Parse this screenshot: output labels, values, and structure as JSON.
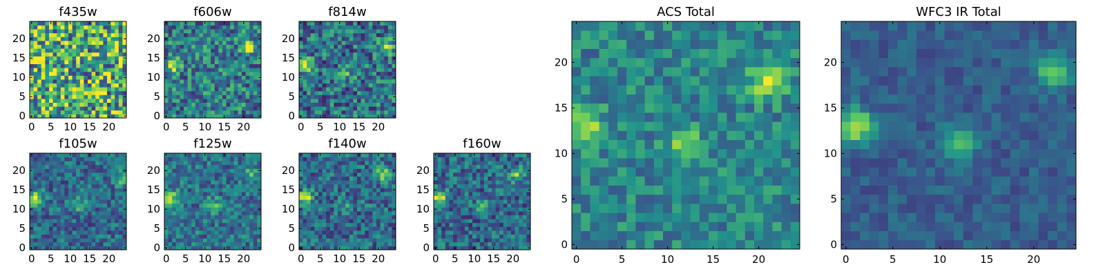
{
  "figure": {
    "colormap": "viridis",
    "colormap_stops": [
      "#440154",
      "#3b528b",
      "#21918c",
      "#5ec962",
      "#fde725"
    ]
  },
  "chart_data": [
    {
      "type": "heatmap",
      "title": "f435w",
      "grid": [
        25,
        25
      ],
      "xlim": [
        0,
        24
      ],
      "ylim": [
        0,
        24
      ],
      "xticks": [
        0,
        5,
        10,
        15,
        20
      ],
      "yticks": [
        0,
        5,
        10,
        15,
        20
      ],
      "hotspots": [
        {
          "x": 21,
          "y": 18,
          "value": 0.9
        }
      ],
      "noise_level": 0.55,
      "background_level": 0.62
    },
    {
      "type": "heatmap",
      "title": "f606w",
      "grid": [
        25,
        25
      ],
      "xlim": [
        0,
        24
      ],
      "ylim": [
        0,
        24
      ],
      "xticks": [
        0,
        5,
        10,
        15,
        20
      ],
      "yticks": [
        0,
        5,
        10,
        15,
        20
      ],
      "hotspots": [
        {
          "x": 2,
          "y": 13,
          "value": 0.9
        },
        {
          "x": 21,
          "y": 18,
          "value": 0.95
        }
      ],
      "noise_level": 0.35,
      "background_level": 0.42
    },
    {
      "type": "heatmap",
      "title": "f814w",
      "grid": [
        25,
        25
      ],
      "xlim": [
        0,
        24
      ],
      "ylim": [
        0,
        24
      ],
      "xticks": [
        0,
        5,
        10,
        15,
        20
      ],
      "yticks": [
        0,
        5,
        10,
        15,
        20
      ],
      "hotspots": [
        {
          "x": 1,
          "y": 13,
          "value": 0.95
        },
        {
          "x": 22,
          "y": 18,
          "value": 0.85
        },
        {
          "x": 12,
          "y": 11,
          "value": 0.6
        }
      ],
      "noise_level": 0.35,
      "background_level": 0.38
    },
    {
      "type": "heatmap",
      "title": "f105w",
      "grid": [
        25,
        25
      ],
      "xlim": [
        0,
        24
      ],
      "ylim": [
        0,
        24
      ],
      "xticks": [
        0,
        5,
        10,
        15,
        20
      ],
      "yticks": [
        0,
        5,
        10,
        15,
        20
      ],
      "hotspots": [
        {
          "x": 1,
          "y": 13,
          "value": 0.95
        },
        {
          "x": 12,
          "y": 11,
          "value": 0.7
        },
        {
          "x": 23,
          "y": 18,
          "value": 0.7
        }
      ],
      "noise_level": 0.25,
      "background_level": 0.35
    },
    {
      "type": "heatmap",
      "title": "f125w",
      "grid": [
        25,
        25
      ],
      "xlim": [
        0,
        24
      ],
      "ylim": [
        0,
        24
      ],
      "xticks": [
        0,
        5,
        10,
        15,
        20
      ],
      "yticks": [
        0,
        5,
        10,
        15,
        20
      ],
      "hotspots": [
        {
          "x": 1,
          "y": 13,
          "value": 0.9
        },
        {
          "x": 12,
          "y": 11,
          "value": 0.7
        },
        {
          "x": 22,
          "y": 19,
          "value": 0.7
        }
      ],
      "noise_level": 0.25,
      "background_level": 0.38
    },
    {
      "type": "heatmap",
      "title": "f140w",
      "grid": [
        25,
        25
      ],
      "xlim": [
        0,
        24
      ],
      "ylim": [
        0,
        24
      ],
      "xticks": [
        0,
        5,
        10,
        15,
        20
      ],
      "yticks": [
        0,
        5,
        10,
        15,
        20
      ],
      "hotspots": [
        {
          "x": 1,
          "y": 13,
          "value": 0.95
        },
        {
          "x": 12,
          "y": 11,
          "value": 0.6
        },
        {
          "x": 21,
          "y": 19,
          "value": 0.85
        }
      ],
      "noise_level": 0.28,
      "background_level": 0.35
    },
    {
      "type": "heatmap",
      "title": "f160w",
      "grid": [
        25,
        25
      ],
      "xlim": [
        0,
        24
      ],
      "ylim": [
        0,
        24
      ],
      "xticks": [
        0,
        5,
        10,
        15,
        20
      ],
      "yticks": [
        0,
        5,
        10,
        15,
        20
      ],
      "hotspots": [
        {
          "x": 1,
          "y": 13,
          "value": 0.95
        },
        {
          "x": 12,
          "y": 11,
          "value": 0.55
        },
        {
          "x": 21,
          "y": 19,
          "value": 0.75
        }
      ],
      "noise_level": 0.28,
      "background_level": 0.34
    },
    {
      "type": "heatmap",
      "title": "ACS Total",
      "grid": [
        25,
        25
      ],
      "xlim": [
        0,
        24
      ],
      "ylim": [
        0,
        24
      ],
      "xticks": [
        0,
        5,
        10,
        15,
        20
      ],
      "yticks": [
        0,
        5,
        10,
        15,
        20
      ],
      "hotspots": [
        {
          "x": 1,
          "y": 13,
          "value": 0.95
        },
        {
          "x": 21,
          "y": 18,
          "value": 0.95
        },
        {
          "x": 12,
          "y": 11,
          "value": 0.8
        }
      ],
      "noise_level": 0.22,
      "background_level": 0.45
    },
    {
      "type": "heatmap",
      "title": "WFC3 IR Total",
      "grid": [
        25,
        25
      ],
      "xlim": [
        0,
        24
      ],
      "ylim": [
        0,
        24
      ],
      "xticks": [
        0,
        5,
        10,
        15,
        20
      ],
      "yticks": [
        0,
        5,
        10,
        15,
        20
      ],
      "hotspots": [
        {
          "x": 1,
          "y": 13,
          "value": 0.95
        },
        {
          "x": 12,
          "y": 11,
          "value": 0.7
        },
        {
          "x": 22,
          "y": 19,
          "value": 0.75
        }
      ],
      "noise_level": 0.12,
      "background_level": 0.3
    }
  ]
}
